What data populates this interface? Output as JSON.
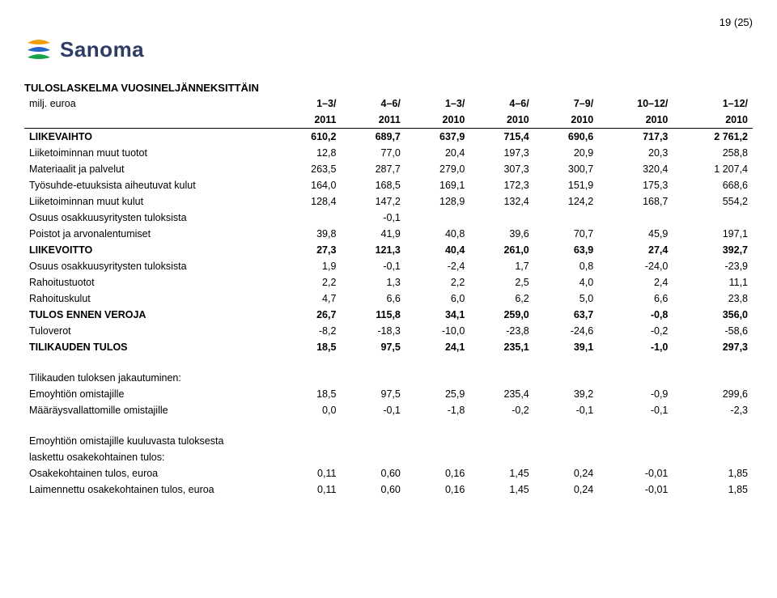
{
  "page_number": "19 (25)",
  "logo_text": "Sanoma",
  "title": "TULOSLASKELMA VUOSINELJÄNNEKSITTÄIN",
  "subtitle": "milj. euroa",
  "header_periods": [
    "1–3/",
    "4–6/",
    "1–3/",
    "4–6/",
    "7–9/",
    "10–12/",
    "1–12/"
  ],
  "header_years": [
    "2011",
    "2011",
    "2010",
    "2010",
    "2010",
    "2010",
    "2010"
  ],
  "rows": [
    {
      "label": "LIIKEVAIHTO",
      "vals": [
        "610,2",
        "689,7",
        "637,9",
        "715,4",
        "690,6",
        "717,3",
        "2 761,2"
      ],
      "bold": true
    },
    {
      "label": "Liiketoiminnan muut tuotot",
      "vals": [
        "12,8",
        "77,0",
        "20,4",
        "197,3",
        "20,9",
        "20,3",
        "258,8"
      ]
    },
    {
      "label": "Materiaalit ja palvelut",
      "vals": [
        "263,5",
        "287,7",
        "279,0",
        "307,3",
        "300,7",
        "320,4",
        "1 207,4"
      ]
    },
    {
      "label": "Työsuhde-etuuksista aiheutuvat kulut",
      "vals": [
        "164,0",
        "168,5",
        "169,1",
        "172,3",
        "151,9",
        "175,3",
        "668,6"
      ]
    },
    {
      "label": "Liiketoiminnan muut kulut",
      "vals": [
        "128,4",
        "147,2",
        "128,9",
        "132,4",
        "124,2",
        "168,7",
        "554,2"
      ]
    },
    {
      "label": "Osuus osakkuusyritysten tuloksista",
      "vals": [
        "",
        "-0,1",
        "",
        "",
        "",
        "",
        ""
      ]
    },
    {
      "label": "Poistot ja arvonalentumiset",
      "vals": [
        "39,8",
        "41,9",
        "40,8",
        "39,6",
        "70,7",
        "45,9",
        "197,1"
      ]
    },
    {
      "label": "LIIKEVOITTO",
      "vals": [
        "27,3",
        "121,3",
        "40,4",
        "261,0",
        "63,9",
        "27,4",
        "392,7"
      ],
      "bold": true
    },
    {
      "label": "Osuus osakkuusyritysten tuloksista",
      "vals": [
        "1,9",
        "-0,1",
        "-2,4",
        "1,7",
        "0,8",
        "-24,0",
        "-23,9"
      ]
    },
    {
      "label": "Rahoitustuotot",
      "vals": [
        "2,2",
        "1,3",
        "2,2",
        "2,5",
        "4,0",
        "2,4",
        "11,1"
      ]
    },
    {
      "label": "Rahoituskulut",
      "vals": [
        "4,7",
        "6,6",
        "6,0",
        "6,2",
        "5,0",
        "6,6",
        "23,8"
      ]
    },
    {
      "label": "TULOS ENNEN VEROJA",
      "vals": [
        "26,7",
        "115,8",
        "34,1",
        "259,0",
        "63,7",
        "-0,8",
        "356,0"
      ],
      "bold": true
    },
    {
      "label": "Tuloverot",
      "vals": [
        "-8,2",
        "-18,3",
        "-10,0",
        "-23,8",
        "-24,6",
        "-0,2",
        "-58,6"
      ]
    },
    {
      "label": "TILIKAUDEN TULOS",
      "vals": [
        "18,5",
        "97,5",
        "24,1",
        "235,1",
        "39,1",
        "-1,0",
        "297,3"
      ],
      "bold": true
    }
  ],
  "block2_heading": "Tilikauden tuloksen jakautuminen:",
  "block2_rows": [
    {
      "label": "Emoyhtiön omistajille",
      "vals": [
        "18,5",
        "97,5",
        "25,9",
        "235,4",
        "39,2",
        "-0,9",
        "299,6"
      ]
    },
    {
      "label": "Määräysvallattomille omistajille",
      "vals": [
        "0,0",
        "-0,1",
        "-1,8",
        "-0,2",
        "-0,1",
        "-0,1",
        "-2,3"
      ]
    }
  ],
  "block3_line1": "Emoyhtiön omistajille kuuluvasta tuloksesta",
  "block3_line2": "laskettu osakekohtainen tulos:",
  "block3_rows": [
    {
      "label": "Osakekohtainen tulos, euroa",
      "vals": [
        "0,11",
        "0,60",
        "0,16",
        "1,45",
        "0,24",
        "-0,01",
        "1,85"
      ]
    },
    {
      "label": "Laimennettu osakekohtainen tulos, euroa",
      "vals": [
        "0,11",
        "0,60",
        "0,16",
        "1,45",
        "0,24",
        "-0,01",
        "1,85"
      ]
    }
  ]
}
